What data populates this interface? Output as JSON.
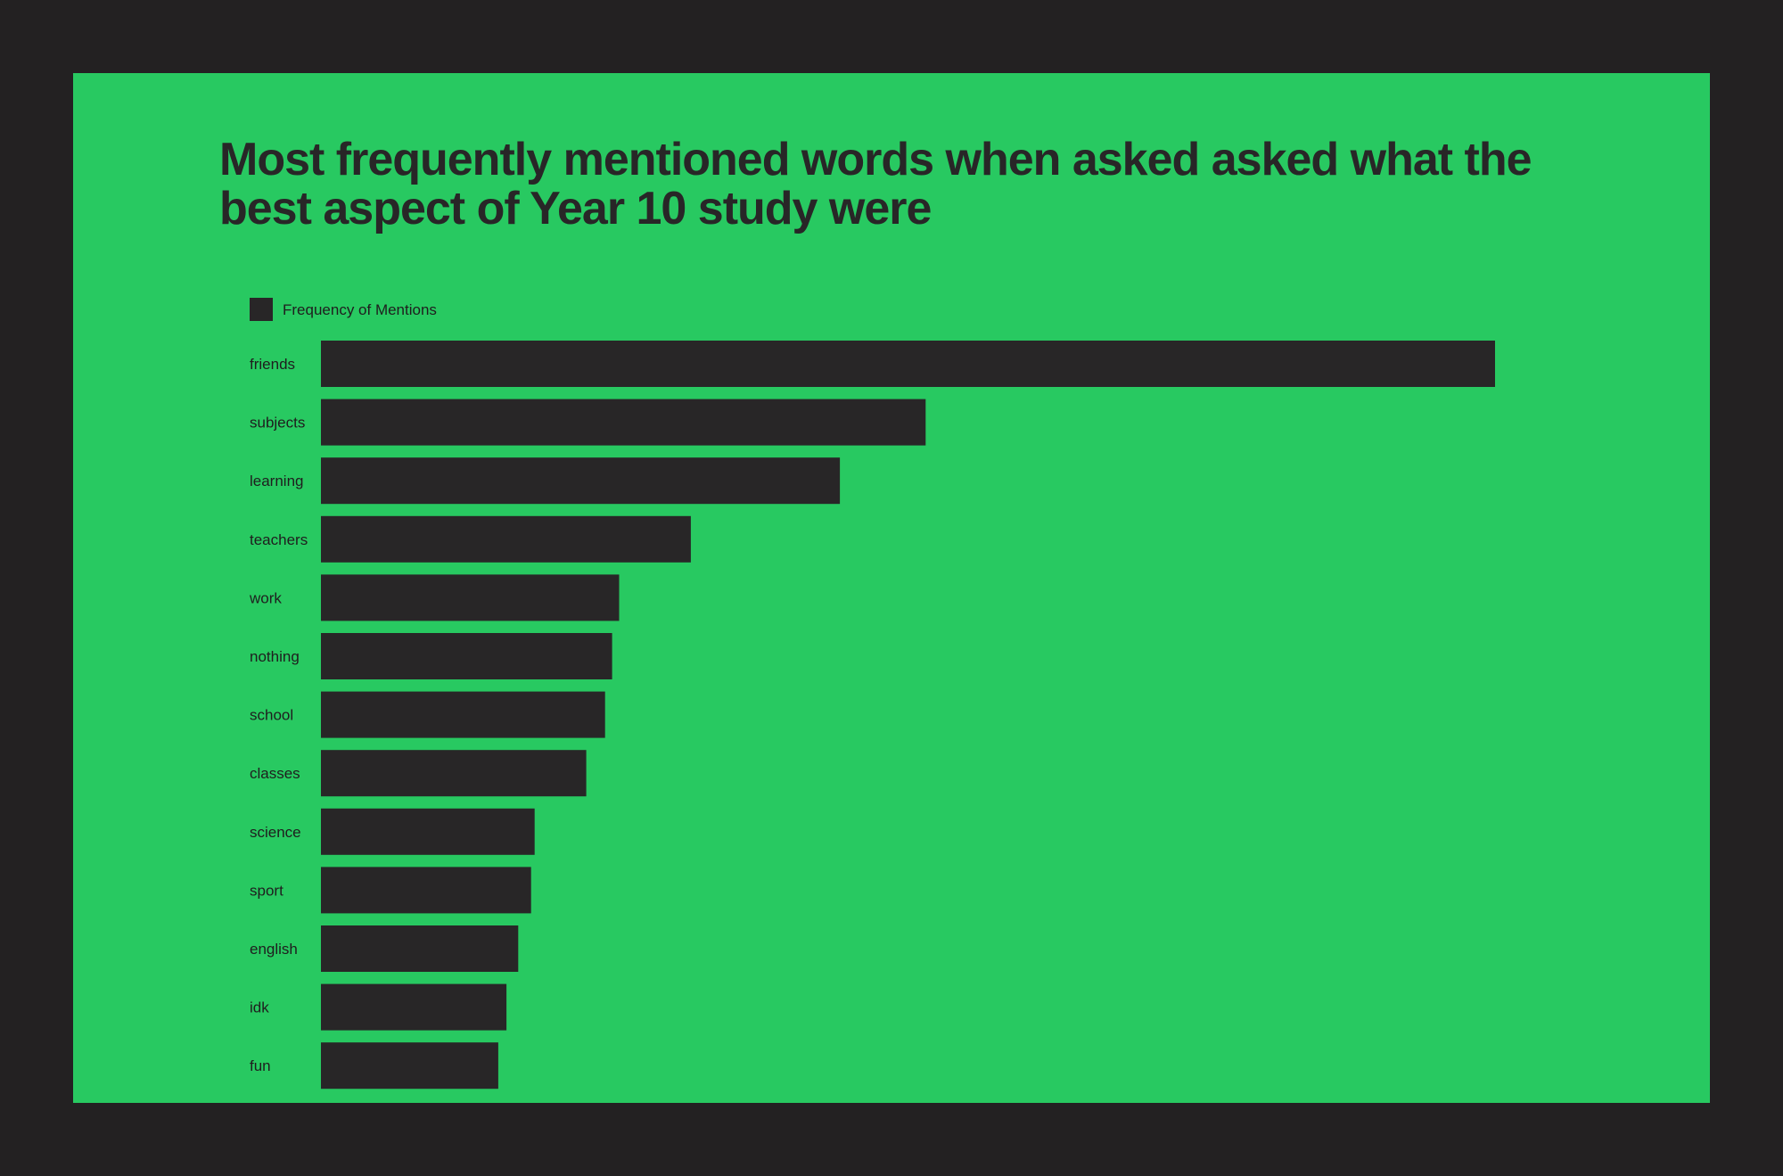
{
  "colors": {
    "background": "#232122",
    "panel": "#28c961",
    "bar": "#282627",
    "text": "#1f1d1e"
  },
  "chart_data": {
    "type": "bar",
    "orientation": "horizontal",
    "title": "Most frequently mentioned words when asked asked what the best aspect of Year 10 study were",
    "xlabel": "",
    "ylabel": "",
    "grid": false,
    "legend_position": "top-left",
    "value_note": "no axis or value labels shown; values are relative bar lengths",
    "categories": [
      "friends",
      "subjects",
      "learning",
      "teachers",
      "work",
      "nothing",
      "school",
      "classes",
      "science",
      "sport",
      "english",
      "idk",
      "fun"
    ],
    "series": [
      {
        "name": "Frequency of Mentions",
        "color": "#282627",
        "values": [
          100,
          51.5,
          44.2,
          31.5,
          25.4,
          24.8,
          24.2,
          22.6,
          18.2,
          17.9,
          16.8,
          15.8,
          15.1
        ]
      }
    ]
  }
}
